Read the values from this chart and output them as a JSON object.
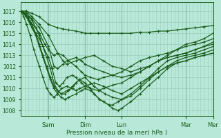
{
  "bg_color": "#b8e8d8",
  "grid_minor_color": "#99ccbb",
  "grid_major_color": "#88bbaa",
  "line_color": "#1a5c1a",
  "xlabel": "Pression niveau de la mer( hPa )",
  "xlabel_color": "#1a5c1a",
  "yticks": [
    1008,
    1009,
    1010,
    1011,
    1012,
    1013,
    1014,
    1015,
    1016,
    1017
  ],
  "ylim": [
    1007.5,
    1017.8
  ],
  "xlim": [
    0,
    10.5
  ],
  "day_lines": [
    1.5,
    3.5,
    5.5,
    9.0,
    10.5
  ],
  "xtick_positions": [
    1.5,
    3.5,
    5.5,
    9.0,
    10.5
  ],
  "xtick_labels": [
    "Sam",
    "Dim",
    "Lun",
    "Mar",
    "Mer"
  ],
  "lines": [
    {
      "x": [
        0,
        0.3,
        0.6,
        1.0,
        1.5,
        2.0,
        2.3,
        2.6,
        3.0,
        3.3,
        3.5,
        3.8,
        4.2,
        4.8,
        5.5,
        6.0,
        6.5,
        7.0,
        7.5,
        8.0,
        8.5,
        9.0,
        9.5,
        10.0,
        10.5
      ],
      "y": [
        1017,
        1017,
        1016.8,
        1016.5,
        1015.8,
        1015.5,
        1015.4,
        1015.3,
        1015.2,
        1015.1,
        1015.0,
        1015.0,
        1015.0,
        1015.0,
        1015.0,
        1015.0,
        1015.1,
        1015.1,
        1015.2,
        1015.2,
        1015.3,
        1015.4,
        1015.5,
        1015.6,
        1015.7
      ]
    },
    {
      "x": [
        0,
        0.3,
        0.6,
        1.0,
        1.5,
        2.0,
        2.3,
        2.5,
        3.0,
        3.5,
        4.0,
        4.5,
        5.0,
        5.5,
        6.0,
        6.5,
        7.0,
        7.5,
        8.0,
        8.5,
        9.0,
        9.5,
        10.0,
        10.5
      ],
      "y": [
        1017,
        1017,
        1016.5,
        1015.8,
        1014.8,
        1013.2,
        1012.5,
        1012.2,
        1012.5,
        1012.8,
        1013.0,
        1012.5,
        1012.0,
        1011.8,
        1011.5,
        1011.8,
        1012.0,
        1012.5,
        1013.0,
        1013.5,
        1014.0,
        1014.2,
        1014.5,
        1015.0
      ]
    },
    {
      "x": [
        0,
        0.3,
        0.6,
        1.0,
        1.5,
        1.8,
        2.0,
        2.3,
        2.5,
        3.0,
        3.3,
        3.5,
        4.0,
        4.5,
        5.0,
        5.5,
        6.0,
        6.5,
        7.0,
        7.5,
        8.0,
        8.5,
        9.0,
        9.5,
        10.0,
        10.5
      ],
      "y": [
        1017,
        1016.8,
        1016.3,
        1015.5,
        1013.8,
        1012.0,
        1011.8,
        1012.2,
        1012.5,
        1012.8,
        1012.5,
        1012.2,
        1011.8,
        1011.5,
        1011.2,
        1011.0,
        1011.2,
        1011.5,
        1012.0,
        1012.5,
        1012.8,
        1013.0,
        1013.2,
        1013.5,
        1013.8,
        1014.2
      ]
    },
    {
      "x": [
        0,
        0.3,
        0.5,
        0.8,
        1.0,
        1.3,
        1.5,
        1.8,
        2.0,
        2.3,
        2.6,
        3.0,
        3.3,
        3.5,
        3.8,
        4.2,
        4.5,
        5.0,
        5.5,
        6.0,
        6.5,
        7.0,
        7.5,
        8.0,
        8.5,
        9.0,
        9.5,
        10.0,
        10.5
      ],
      "y": [
        1017,
        1016.5,
        1016.0,
        1015.5,
        1015.0,
        1014.0,
        1013.5,
        1013.0,
        1013.2,
        1013.0,
        1012.5,
        1012.0,
        1011.5,
        1011.2,
        1011.0,
        1010.8,
        1011.0,
        1011.2,
        1011.5,
        1012.0,
        1012.5,
        1012.8,
        1013.0,
        1013.2,
        1013.5,
        1013.8,
        1014.0,
        1014.2,
        1014.5
      ]
    },
    {
      "x": [
        0,
        0.3,
        0.5,
        0.8,
        1.0,
        1.2,
        1.5,
        1.7,
        1.9,
        2.1,
        2.3,
        2.5,
        2.8,
        3.0,
        3.3,
        3.5,
        3.8,
        4.2,
        4.5,
        5.0,
        5.5,
        6.0,
        6.5,
        7.0,
        7.5,
        8.0,
        8.5,
        9.0,
        9.5,
        10.0,
        10.5
      ],
      "y": [
        1017,
        1016.5,
        1015.8,
        1015.0,
        1014.5,
        1013.8,
        1012.8,
        1011.8,
        1010.5,
        1010.2,
        1010.5,
        1011.0,
        1011.2,
        1011.0,
        1010.5,
        1010.2,
        1010.0,
        1009.8,
        1010.0,
        1010.3,
        1010.5,
        1011.0,
        1011.5,
        1012.0,
        1012.5,
        1012.8,
        1013.0,
        1013.2,
        1013.5,
        1013.8,
        1014.0
      ]
    },
    {
      "x": [
        0,
        0.2,
        0.4,
        0.6,
        0.8,
        1.0,
        1.2,
        1.4,
        1.6,
        1.8,
        2.0,
        2.2,
        2.5,
        2.8,
        3.0,
        3.2,
        3.5,
        3.8,
        4.0,
        4.3,
        4.6,
        5.0,
        5.5,
        6.0,
        6.5,
        7.0,
        7.5,
        8.0,
        8.5,
        9.0,
        9.5,
        10.0,
        10.5
      ],
      "y": [
        1017,
        1016.8,
        1016.5,
        1016.2,
        1015.5,
        1014.8,
        1013.8,
        1012.8,
        1011.8,
        1010.5,
        1009.8,
        1009.5,
        1009.8,
        1010.0,
        1010.5,
        1010.8,
        1011.0,
        1010.5,
        1010.2,
        1009.8,
        1009.5,
        1009.2,
        1009.0,
        1009.3,
        1010.0,
        1010.8,
        1011.5,
        1012.0,
        1012.5,
        1012.8,
        1013.0,
        1013.2,
        1013.5
      ]
    },
    {
      "x": [
        0,
        0.2,
        0.4,
        0.6,
        0.8,
        1.0,
        1.2,
        1.4,
        1.6,
        1.8,
        2.0,
        2.2,
        2.4,
        2.6,
        2.8,
        3.0,
        3.2,
        3.5,
        3.8,
        4.0,
        4.3,
        4.5,
        4.8,
        5.0,
        5.3,
        5.5,
        6.0,
        6.5,
        7.0,
        7.5,
        8.0,
        8.5,
        9.0,
        9.5,
        10.0,
        10.5
      ],
      "y": [
        1017,
        1016.8,
        1016.3,
        1015.8,
        1015.0,
        1014.0,
        1013.0,
        1012.0,
        1011.0,
        1010.2,
        1009.8,
        1009.5,
        1009.5,
        1009.8,
        1010.2,
        1010.5,
        1010.8,
        1010.5,
        1010.0,
        1009.5,
        1009.0,
        1008.8,
        1008.5,
        1008.5,
        1008.8,
        1009.0,
        1009.5,
        1010.2,
        1011.0,
        1011.8,
        1012.5,
        1012.8,
        1013.0,
        1013.2,
        1013.5,
        1013.8
      ]
    },
    {
      "x": [
        0,
        0.2,
        0.4,
        0.6,
        0.8,
        1.0,
        1.2,
        1.4,
        1.6,
        1.8,
        2.0,
        2.2,
        2.4,
        2.6,
        3.0,
        3.3,
        3.5,
        3.8,
        4.0,
        4.3,
        4.5,
        4.8,
        5.0,
        5.3,
        5.5,
        6.0,
        6.5,
        7.0,
        7.5,
        8.0,
        8.5,
        9.0,
        9.5,
        10.0,
        10.5
      ],
      "y": [
        1017,
        1016.8,
        1016.2,
        1015.5,
        1014.8,
        1013.8,
        1012.8,
        1011.8,
        1010.8,
        1010.0,
        1009.5,
        1009.2,
        1009.0,
        1009.2,
        1009.5,
        1009.8,
        1010.0,
        1009.8,
        1009.5,
        1009.0,
        1008.8,
        1008.5,
        1008.2,
        1008.0,
        1008.2,
        1008.8,
        1009.5,
        1010.3,
        1011.0,
        1011.8,
        1012.3,
        1012.5,
        1012.8,
        1013.0,
        1013.2
      ]
    },
    {
      "x": [
        0,
        0.15,
        0.3,
        0.5,
        0.7,
        1.0,
        1.2,
        1.4,
        1.6,
        1.8,
        2.0,
        2.2,
        2.5,
        2.8,
        3.0,
        3.2,
        3.5,
        4.0,
        4.5,
        5.0,
        5.5,
        6.0,
        6.5,
        7.0,
        7.5,
        8.0,
        8.5,
        9.0,
        9.5,
        10.0,
        10.5
      ],
      "y": [
        1017,
        1016.5,
        1015.8,
        1014.8,
        1013.5,
        1012.0,
        1011.0,
        1010.0,
        1009.5,
        1009.2,
        1009.5,
        1010.0,
        1010.2,
        1010.0,
        1009.8,
        1010.0,
        1010.2,
        1010.5,
        1010.2,
        1009.8,
        1009.5,
        1010.0,
        1010.5,
        1011.0,
        1011.5,
        1012.0,
        1012.3,
        1012.5,
        1012.8,
        1013.0,
        1013.2
      ]
    }
  ]
}
